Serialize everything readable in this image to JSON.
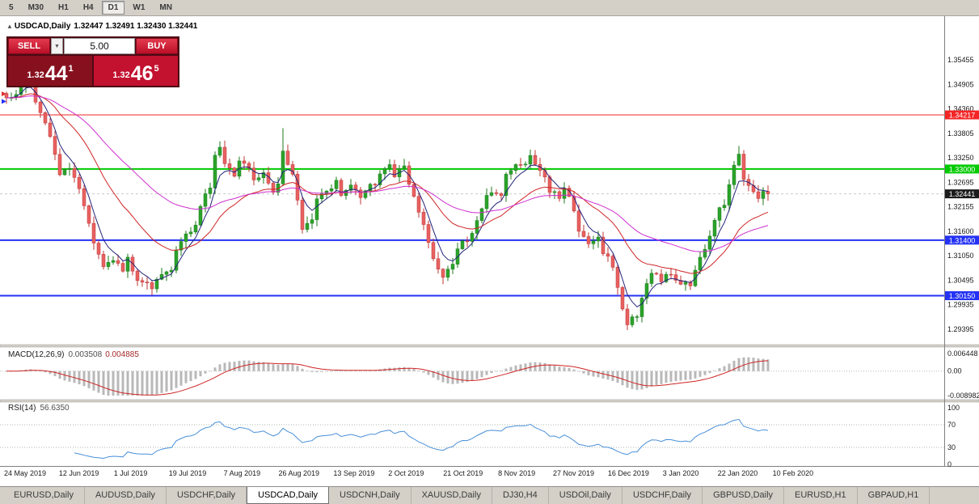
{
  "toolbar": {
    "timeframes": [
      "5",
      "M30",
      "H1",
      "H4",
      "D1",
      "W1",
      "MN"
    ],
    "active_timeframe": "D1"
  },
  "chart_header": {
    "collapse_icon": "▲",
    "symbol": "USDCAD,Daily",
    "ohlc": "1.32447 1.32491 1.32430 1.32441"
  },
  "trade_panel": {
    "sell_label": "SELL",
    "buy_label": "BUY",
    "volume": "5.00",
    "dropdown_icon": "▼",
    "sell_price": {
      "prefix": "1.32",
      "big": "44",
      "sup": "1"
    },
    "buy_price": {
      "prefix": "1.32",
      "big": "46",
      "sup": "5"
    }
  },
  "indicators": {
    "macd_label": "MACD(12,26,9)",
    "macd_value": "0.003508",
    "macd_signal_value": "0.004885",
    "rsi_label": "RSI(14)",
    "rsi_value": "56.6350"
  },
  "price_axis": {
    "ticks": [
      "1.35455",
      "1.34905",
      "1.34360",
      "1.33805",
      "1.33250",
      "1.32695",
      "1.32155",
      "1.31600",
      "1.31050",
      "1.30495",
      "1.29935",
      "1.29395"
    ]
  },
  "macd_axis": {
    "max": 0.006448,
    "min": -0.008982,
    "ticks": [
      "0.006448",
      "0.00",
      "-0.008982"
    ]
  },
  "rsi_axis": {
    "ticks": [
      "100",
      "70",
      "30",
      "0"
    ],
    "levels": [
      70,
      30
    ]
  },
  "time_axis": {
    "dates": [
      "24 May 2019",
      "12 Jun 2019",
      "1 Jul 2019",
      "19 Jul 2019",
      "7 Aug 2019",
      "26 Aug 2019",
      "13 Sep 2019",
      "2 Oct 2019",
      "21 Oct 2019",
      "8 Nov 2019",
      "27 Nov 2019",
      "16 Dec 2019",
      "3 Jan 2020",
      "22 Jan 2020",
      "10 Feb 2020"
    ]
  },
  "tabs": {
    "items": [
      "EURUSD,Daily",
      "AUDUSD,Daily",
      "USDCHF,Daily",
      "USDCAD,Daily",
      "USDCNH,Daily",
      "XAUUSD,Daily",
      "DJ30,H4",
      "USDOil,Daily",
      "USDCHF,Daily",
      "GBPUSD,Daily",
      "EURUSD,H1",
      "GBPAUD,H1"
    ],
    "active": "USDCAD,Daily"
  },
  "chart_data": {
    "type": "candlestick",
    "symbol": "USDCAD",
    "timeframe": "Daily",
    "title": "USDCAD,Daily",
    "num_candles": 158,
    "price_range_visible": [
      1.2903,
      1.3629
    ],
    "price_waypoints": [
      [
        0,
        1.346
      ],
      [
        2,
        1.347
      ],
      [
        4,
        1.35
      ],
      [
        5,
        1.348
      ],
      [
        8,
        1.3407
      ],
      [
        11,
        1.3289
      ],
      [
        13,
        1.3307
      ],
      [
        15,
        1.3262
      ],
      [
        16,
        1.3216
      ],
      [
        18,
        1.3134
      ],
      [
        20,
        1.3079
      ],
      [
        22,
        1.3097
      ],
      [
        24,
        1.307
      ],
      [
        25,
        1.3097
      ],
      [
        27,
        1.3052
      ],
      [
        29,
        1.3043
      ],
      [
        30,
        1.3034
      ],
      [
        32,
        1.3061
      ],
      [
        34,
        1.3079
      ],
      [
        35,
        1.3116
      ],
      [
        37,
        1.3152
      ],
      [
        39,
        1.317
      ],
      [
        40,
        1.3216
      ],
      [
        42,
        1.3262
      ],
      [
        43,
        1.3325
      ],
      [
        44,
        1.3343
      ],
      [
        45,
        1.3307
      ],
      [
        47,
        1.3289
      ],
      [
        48,
        1.3316
      ],
      [
        50,
        1.3298
      ],
      [
        51,
        1.3271
      ],
      [
        53,
        1.3289
      ],
      [
        55,
        1.3252
      ],
      [
        56,
        1.3271
      ],
      [
        57,
        1.3334
      ],
      [
        59,
        1.3289
      ],
      [
        60,
        1.3234
      ],
      [
        61,
        1.3161
      ],
      [
        63,
        1.3189
      ],
      [
        64,
        1.3234
      ],
      [
        66,
        1.3252
      ],
      [
        68,
        1.3271
      ],
      [
        69,
        1.3243
      ],
      [
        71,
        1.3261
      ],
      [
        73,
        1.3234
      ],
      [
        74,
        1.3252
      ],
      [
        76,
        1.3271
      ],
      [
        77,
        1.3289
      ],
      [
        79,
        1.3316
      ],
      [
        80,
        1.3289
      ],
      [
        82,
        1.3307
      ],
      [
        83,
        1.3271
      ],
      [
        85,
        1.3207
      ],
      [
        87,
        1.3134
      ],
      [
        88,
        1.3097
      ],
      [
        90,
        1.3061
      ],
      [
        92,
        1.3088
      ],
      [
        93,
        1.3125
      ],
      [
        95,
        1.3143
      ],
      [
        97,
        1.3179
      ],
      [
        98,
        1.3216
      ],
      [
        100,
        1.3252
      ],
      [
        102,
        1.3234
      ],
      [
        103,
        1.3289
      ],
      [
        105,
        1.3316
      ],
      [
        107,
        1.3307
      ],
      [
        108,
        1.3325
      ],
      [
        109,
        1.3316
      ],
      [
        111,
        1.328
      ],
      [
        112,
        1.3252
      ],
      [
        114,
        1.3234
      ],
      [
        115,
        1.3261
      ],
      [
        117,
        1.3207
      ],
      [
        118,
        1.3161
      ],
      [
        120,
        1.3134
      ],
      [
        122,
        1.3152
      ],
      [
        123,
        1.3116
      ],
      [
        125,
        1.3079
      ],
      [
        127,
        1.2988
      ],
      [
        128,
        1.2952
      ],
      [
        130,
        1.297
      ],
      [
        132,
        1.3043
      ],
      [
        133,
        1.3061
      ],
      [
        135,
        1.3052
      ],
      [
        137,
        1.3061
      ],
      [
        138,
        1.3052
      ],
      [
        140,
        1.3043
      ],
      [
        141,
        1.3034
      ],
      [
        142,
        1.3079
      ],
      [
        144,
        1.3116
      ],
      [
        145,
        1.3152
      ],
      [
        146,
        1.3189
      ],
      [
        148,
        1.3225
      ],
      [
        149,
        1.3271
      ],
      [
        150,
        1.3307
      ],
      [
        151,
        1.3334
      ],
      [
        152,
        1.328
      ],
      [
        153,
        1.3258
      ],
      [
        155,
        1.3238
      ],
      [
        156,
        1.3252
      ],
      [
        157,
        1.32441
      ]
    ],
    "jitter": 0.0014,
    "wick_overrides": {
      "4": {
        "h": 1.3547
      },
      "30": {
        "l": 1.3016
      },
      "57": {
        "h": 1.3392
      },
      "90": {
        "l": 1.3041
      },
      "128": {
        "l": 1.2939
      },
      "151": {
        "h": 1.3352
      }
    },
    "levels": [
      {
        "price": 1.34217,
        "label": "1.34217",
        "color": "#f42525",
        "width": 1
      },
      {
        "price": 1.33,
        "label": "1.33000",
        "color": "#00ca00",
        "width": 2
      },
      {
        "price": 1.314,
        "label": "1.31400",
        "color": "#2432f4",
        "width": 2
      },
      {
        "price": 1.3015,
        "label": "1.30150",
        "color": "#2432f4",
        "width": 2
      }
    ],
    "current_price": {
      "price": 1.32441,
      "label": "1.32441",
      "color": "#1c1c1c"
    },
    "markers": [
      {
        "price": 1.3469,
        "color": "#e03030"
      },
      {
        "price": 1.3452,
        "color": "#2432f4"
      }
    ],
    "ma_periods": [
      5,
      20,
      45
    ],
    "macd_params": [
      12,
      26,
      9
    ],
    "rsi_period": 14,
    "colors": {
      "up": "#2ba32b",
      "up_border": "#1d7a1d",
      "down": "#e86161",
      "down_border": "#bf3434",
      "ma_fast": "#23237a",
      "ma_mid": "#cf2424",
      "ma_slow": "#cf2fcf",
      "macd_hist": "#b8b8b8",
      "macd_signal": "#cf2424",
      "rsi": "#4a90d9",
      "level_dotted": "#a8b4a8",
      "axis_text": "#1a1a1a"
    }
  }
}
